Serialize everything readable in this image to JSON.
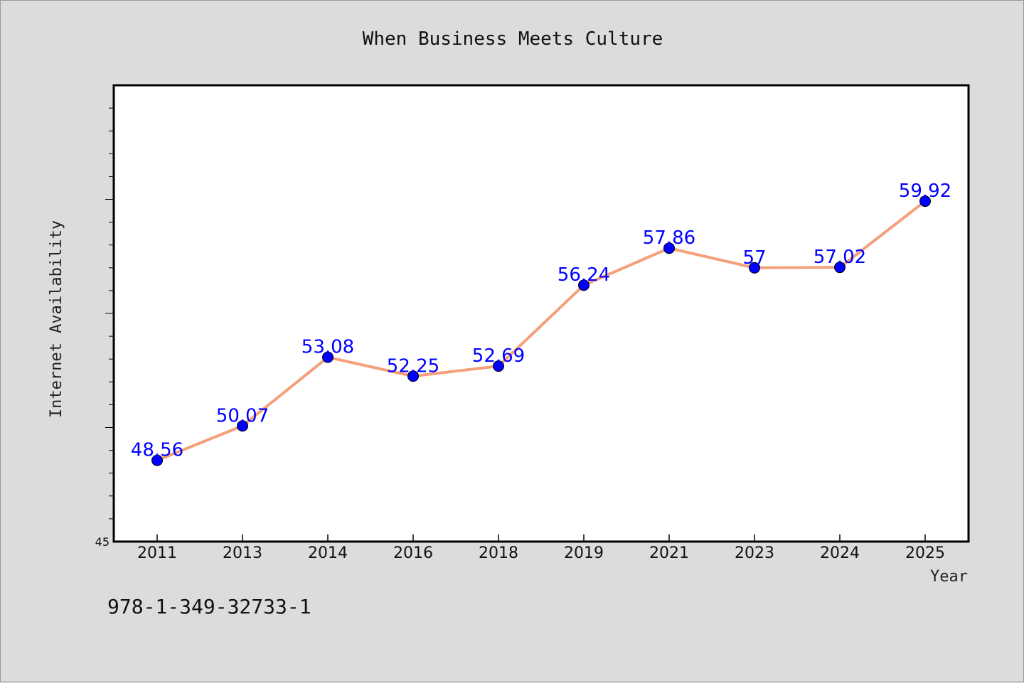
{
  "chart_data": {
    "type": "line",
    "title": "When Business Meets Culture",
    "xlabel": "Year",
    "ylabel": "Internet Availability",
    "categories": [
      "2011",
      "2013",
      "2014",
      "2016",
      "2018",
      "2019",
      "2021",
      "2023",
      "2024",
      "2025"
    ],
    "series": [
      {
        "values": [
          48.56,
          50.07,
          53.08,
          52.25,
          52.69,
          56.24,
          57.86,
          57,
          57.02,
          59.92
        ],
        "labels": [
          "48.56",
          "50.07",
          "53.08",
          "52.25",
          "52.69",
          "56.24",
          "57.86",
          "57",
          "57.02",
          "59.92"
        ]
      }
    ],
    "ylim": [
      45,
      65
    ],
    "yticks_labeled": [
      "45"
    ],
    "ytick_step_minor": 1,
    "grid": false,
    "colors": {
      "line": "#f4a07a",
      "marker": "#0000ff",
      "label": "#0000ff",
      "background": "#dcdcdc",
      "plot_background": "#ffffff"
    }
  },
  "footer": {
    "isbn": "978-1-349-32733-1"
  }
}
